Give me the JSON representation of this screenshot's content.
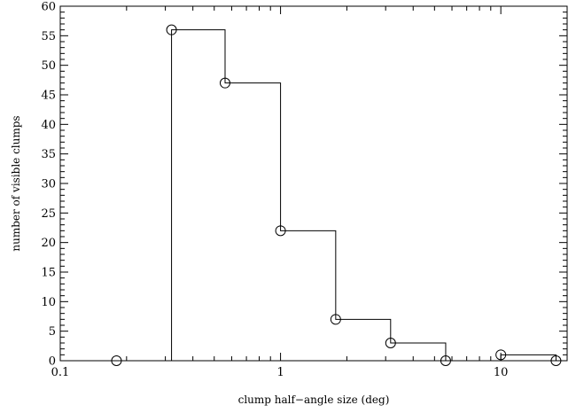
{
  "chart_data": {
    "type": "line",
    "style": "step-histogram",
    "xlabel": "clump half−angle size (deg)",
    "ylabel": "number of visible clumps",
    "xscale": "log",
    "xlim": [
      0.1,
      20
    ],
    "ylim": [
      0,
      60
    ],
    "grid": false,
    "xticks": [
      {
        "value": 0.1,
        "label": "0.1"
      },
      {
        "value": 1,
        "label": "1"
      },
      {
        "value": 10,
        "label": "10"
      }
    ],
    "yticks": [
      0,
      5,
      10,
      15,
      20,
      25,
      30,
      35,
      40,
      45,
      50,
      55,
      60
    ],
    "series": [
      {
        "points": [
          {
            "x": 0.18,
            "y": 0
          },
          {
            "x": 0.32,
            "y": 56
          },
          {
            "x": 0.56,
            "y": 47
          },
          {
            "x": 1.0,
            "y": 22
          },
          {
            "x": 1.78,
            "y": 7
          },
          {
            "x": 3.16,
            "y": 3
          },
          {
            "x": 5.62,
            "y": 0
          },
          {
            "x": 10.0,
            "y": 1
          },
          {
            "x": 17.8,
            "y": 0
          }
        ]
      }
    ]
  }
}
